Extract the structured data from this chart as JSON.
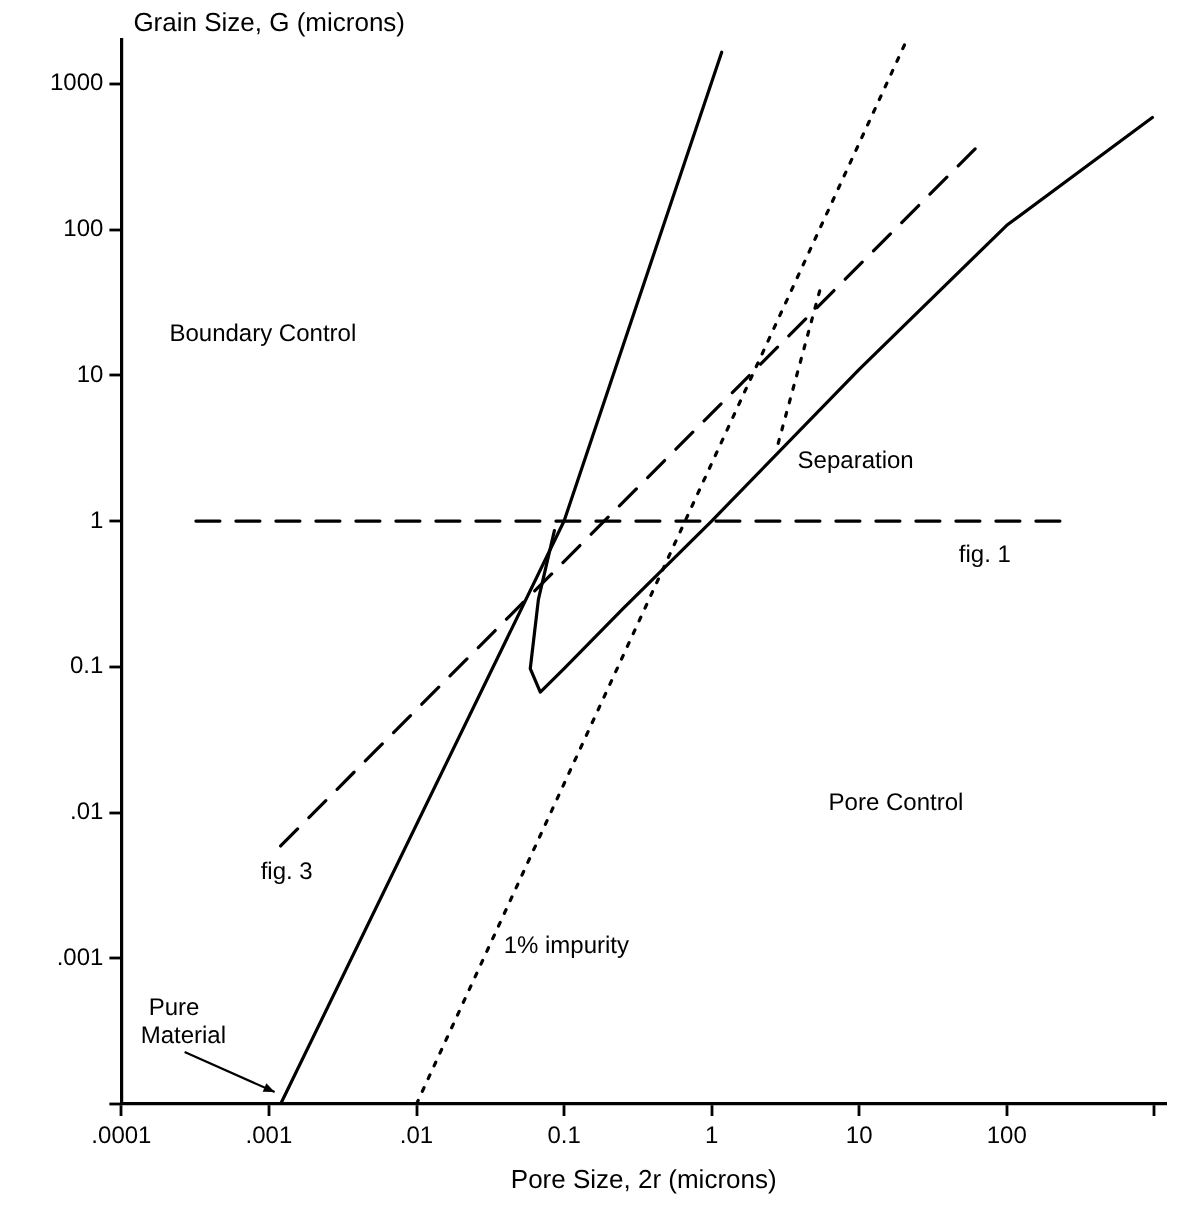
{
  "chart_data": {
    "type": "line",
    "xlabel": "Pore Size, 2r (microns)",
    "ylabel": "Grain Size, G (microns)",
    "log": "xy",
    "grid": false,
    "legend": false,
    "marker": "none",
    "xlim": [
      0.0001,
      1200
    ],
    "ylim": [
      0.0001,
      2000
    ],
    "xticks": [
      {
        "value": 0.0001,
        "label": ".0001"
      },
      {
        "value": 0.001,
        "label": ".001"
      },
      {
        "value": 0.01,
        "label": ".01"
      },
      {
        "value": 0.1,
        "label": "0.1"
      },
      1,
      10,
      100,
      {
        "value": 1000,
        "label": null
      }
    ],
    "yticks": [
      {
        "value": 0.0001,
        "label": null
      },
      {
        "value": 0.001,
        "label": ".001"
      },
      {
        "value": 0.01,
        "label": ".01"
      },
      {
        "value": 0.1,
        "label": "0.1"
      },
      1,
      10,
      100,
      1000
    ],
    "series": [
      {
        "name": "Pure Material",
        "color": "#000000",
        "line_style": "solid",
        "x": [
          0.0012,
          0.1,
          1.17
        ],
        "values": [
          0.0001,
          1,
          1650
        ]
      },
      {
        "color": "#000000",
        "line_style": "solid",
        "x": [
          0.086,
          0.067,
          0.059,
          0.069,
          0.1,
          0.25,
          1,
          10,
          100,
          970
        ],
        "values": [
          0.86,
          0.29,
          0.097,
          0.067,
          0.097,
          0.25,
          1,
          11,
          107,
          588
        ]
      },
      {
        "name": "fig. 1",
        "color": "#000000",
        "line_style": "dashed",
        "x": [
          0.00032,
          240
        ],
        "values": [
          1,
          1
        ]
      },
      {
        "name": "fig. 3",
        "color": "#000000",
        "line_style": "dashed",
        "x": [
          0.0012,
          63
        ],
        "values": [
          0.0059,
          370
        ]
      },
      {
        "name": "1% impurity",
        "color": "#000000",
        "line_style": "dotted",
        "x": [
          0.01,
          21
        ],
        "values": [
          0.0001,
          2000
        ]
      },
      {
        "name": "Separation",
        "color": "#000000",
        "line_style": "dotted",
        "x": [
          5.4,
          2.8
        ],
        "values": [
          38,
          3.3
        ]
      }
    ],
    "annotations": [
      "Boundary Control",
      "Pore Control"
    ]
  }
}
